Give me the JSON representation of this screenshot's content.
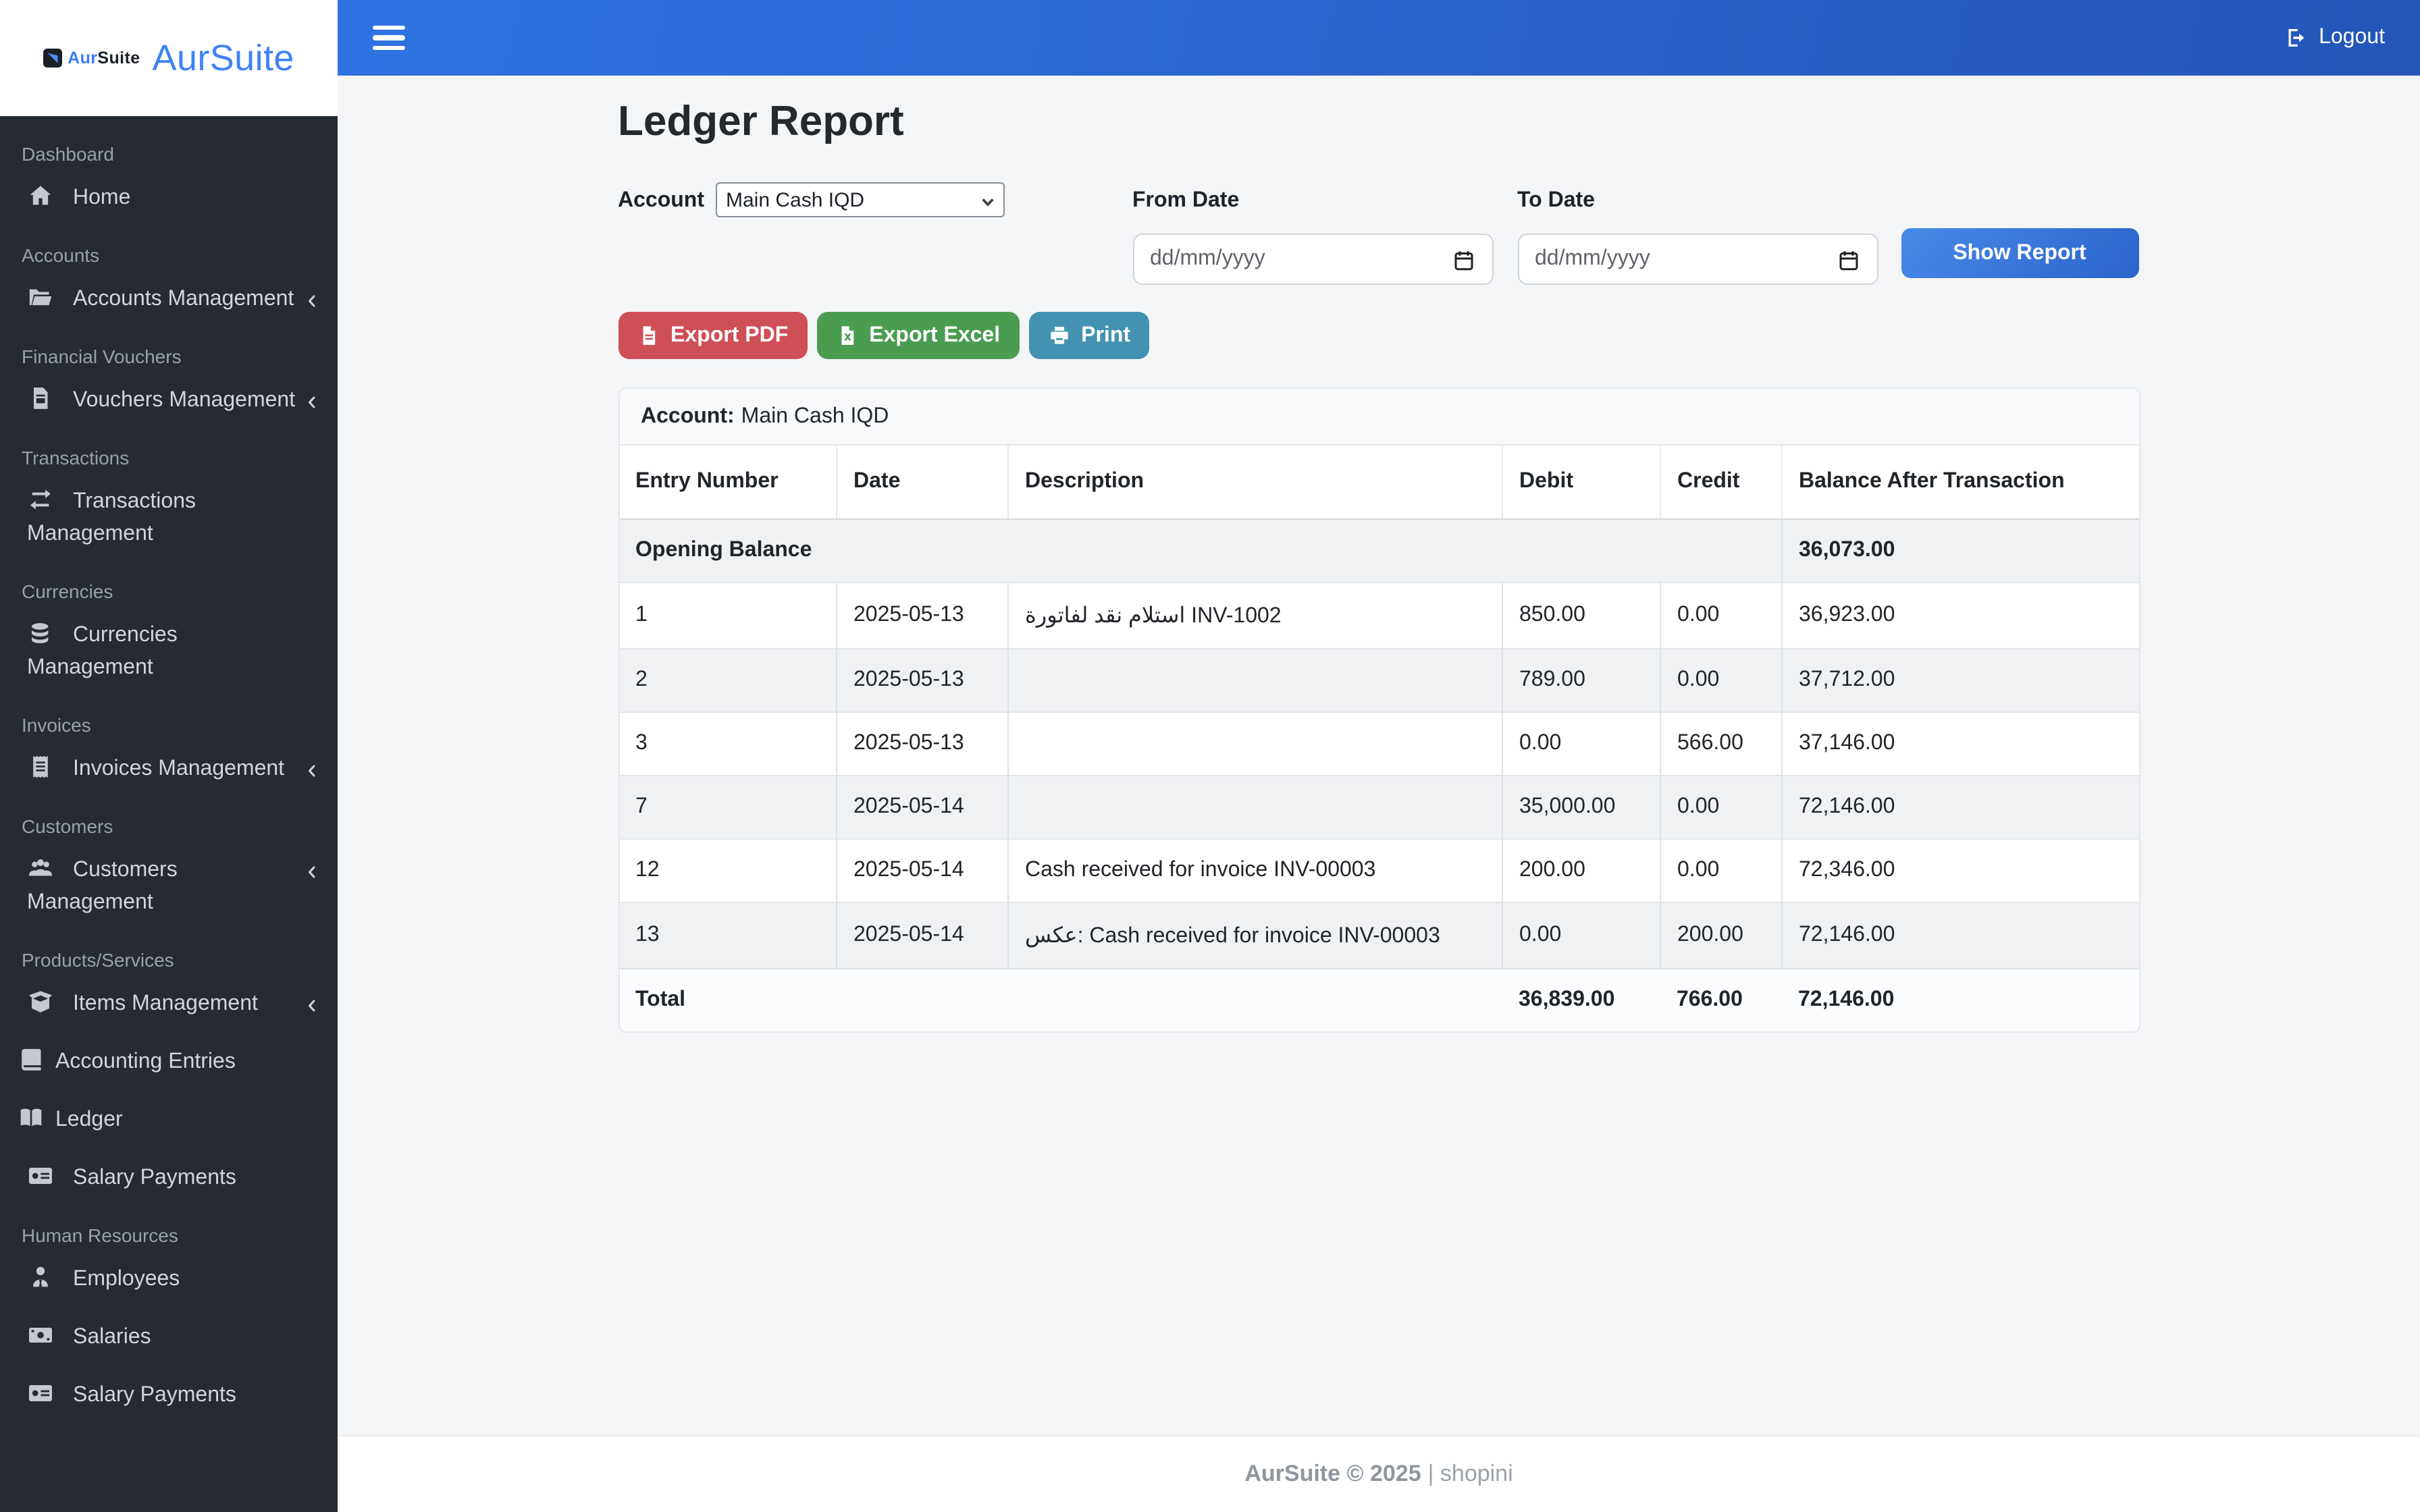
{
  "brand": {
    "mini_icon": "aursuite-logo-icon",
    "mini_text_accent": "Aur",
    "mini_text_rest": "Suite",
    "logo_large": "AurSuite"
  },
  "navbar": {
    "menu_icon": "hamburger-menu-icon",
    "logout_label": "Logout"
  },
  "sidebar": {
    "sections": [
      {
        "label": "Dashboard",
        "items": [
          {
            "label": "Home",
            "icon": "home-icon"
          }
        ]
      },
      {
        "label": "Accounts",
        "items": [
          {
            "label": "Accounts Management",
            "icon": "folder-open-icon",
            "chevron": true
          }
        ]
      },
      {
        "label": "Financial Vouchers",
        "items": [
          {
            "label": "Vouchers Management",
            "icon": "file-invoice-icon",
            "chevron": true
          }
        ]
      },
      {
        "label": "Transactions",
        "items": [
          {
            "label": "Transactions Management",
            "icon": "arrows-exchange-icon"
          }
        ]
      },
      {
        "label": "Currencies",
        "items": [
          {
            "label": "Currencies Management",
            "icon": "coins-icon"
          }
        ]
      },
      {
        "label": "Invoices",
        "items": [
          {
            "label": "Invoices Management",
            "icon": "receipt-icon",
            "chevron": true
          }
        ]
      },
      {
        "label": "Customers",
        "items": [
          {
            "label": "Customers Management",
            "icon": "users-icon",
            "chevron": true
          }
        ]
      },
      {
        "label": "Products/Services",
        "items": [
          {
            "label": "Items Management",
            "icon": "box-open-icon",
            "chevron": true
          },
          {
            "label": "Accounting Entries",
            "icon": "book-icon",
            "tight": true
          },
          {
            "label": "Ledger",
            "icon": "book-open-icon",
            "tight": true
          },
          {
            "label": "Salary Payments",
            "icon": "money-check-icon"
          }
        ]
      },
      {
        "label": "Human Resources",
        "items": [
          {
            "label": "Employees",
            "icon": "user-tie-icon"
          },
          {
            "label": "Salaries",
            "icon": "money-bill-icon"
          },
          {
            "label": "Salary Payments",
            "icon": "money-check-icon"
          }
        ]
      }
    ]
  },
  "page": {
    "title": "Ledger Report"
  },
  "filters": {
    "account_label": "Account",
    "account_selected": "Main Cash IQD",
    "from_date_label": "From Date",
    "to_date_label": "To Date",
    "date_placeholder": "dd/mm/yyyy",
    "show_report_label": "Show Report"
  },
  "actions": {
    "export_pdf": "Export PDF",
    "export_excel": "Export Excel",
    "print": "Print"
  },
  "report": {
    "account_prefix": "Account:",
    "account_name": "Main Cash IQD",
    "columns": [
      "Entry Number",
      "Date",
      "Description",
      "Debit",
      "Credit",
      "Balance After Transaction"
    ],
    "opening_row": {
      "label": "Opening Balance",
      "balance": "36,073.00"
    },
    "rows": [
      {
        "entry": "1",
        "date": "2025-05-13",
        "description": "استلام نقد لفاتورة INV-1002",
        "debit": "850.00",
        "credit": "0.00",
        "balance": "36,923.00"
      },
      {
        "entry": "2",
        "date": "2025-05-13",
        "description": "",
        "debit": "789.00",
        "credit": "0.00",
        "balance": "37,712.00"
      },
      {
        "entry": "3",
        "date": "2025-05-13",
        "description": "",
        "debit": "0.00",
        "credit": "566.00",
        "balance": "37,146.00"
      },
      {
        "entry": "7",
        "date": "2025-05-14",
        "description": "",
        "debit": "35,000.00",
        "credit": "0.00",
        "balance": "72,146.00"
      },
      {
        "entry": "12",
        "date": "2025-05-14",
        "description": "Cash received for invoice INV-00003",
        "debit": "200.00",
        "credit": "0.00",
        "balance": "72,346.00"
      },
      {
        "entry": "13",
        "date": "2025-05-14",
        "description": "عكس: Cash received for invoice INV-00003",
        "debit": "0.00",
        "credit": "200.00",
        "balance": "72,146.00"
      }
    ],
    "total_row": {
      "label": "Total",
      "debit": "36,839.00",
      "credit": "766.00",
      "balance": "72,146.00"
    }
  },
  "footer": {
    "text_bold": "AurSuite © 2025",
    "text_rest": "| shopini"
  },
  "colors": {
    "topbar_gradient_start": "#2f73e2",
    "topbar_gradient_end": "#2456b9",
    "sidebar_bg": "#262b31",
    "brand_blue": "#3f82f7",
    "primary_button": "#2b63cb",
    "pdf_button": "#cf4f57",
    "excel_button": "#4a9c51",
    "print_button": "#4392b1",
    "content_bg": "#f4f5f7",
    "stripe_row": "#f0f1f3"
  }
}
